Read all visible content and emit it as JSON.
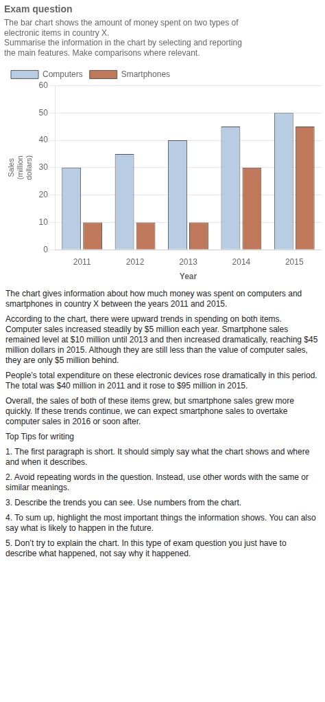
{
  "chart_data": {
    "type": "bar",
    "title": "Exam question",
    "subtitle": [
      "The bar chart shows the amount of money spent on two types of",
      "electronic items in country X.",
      "Summarise the information in the chart by selecting and reporting",
      "the main features. Make comparisons where relevant."
    ],
    "categories": [
      "2011",
      "2012",
      "2013",
      "2014",
      "2015"
    ],
    "series": [
      {
        "name": "Computers",
        "color": "#B8CCE4",
        "values": [
          30,
          35,
          40,
          45,
          50
        ]
      },
      {
        "name": "Smartphones",
        "color": "#C0785A",
        "values": [
          10,
          10,
          10,
          30,
          45
        ]
      }
    ],
    "xlabel": "Year",
    "ylabel": "Sales\n(million\ndollars)",
    "ylim": [
      0,
      60
    ],
    "yticks": [
      0,
      10,
      20,
      30,
      40,
      50,
      60
    ],
    "grid": true,
    "legend": "upper left",
    "annotations": [
      "The chart gives information about how much money was spent on computers and smartphones in country X between the years 2011 and 2015.",
      "According to the chart, there were upward trends in spending on both items. Computer sales increased steadily by $5 million each year. Smartphone sales remained level at $10 million until 2013 and then increased dramatically, reaching $45 million dollars in 2015. Although they are still less than the value of computer sales, they are only $5 million behind.",
      "People’s total expenditure on these electronic devices rose dramatically in this period. The total was $40 million in 2011 and it rose to $95 million in 2015.",
      "Overall, the sales of both of these items grew, but smartphone sales grew more quickly. If these trends continue, we can expect smartphone sales to overtake computer sales in 2016 or soon after.",
      "Top Tips for writing",
      "1. The first paragraph is short. It should simply say what the chart shows and where and when it describes.",
      "2. Avoid repeating words in the question. Instead, use other words with the same or similar meanings.",
      "3. Describe the trends you can see. Use numbers from the chart.",
      "4. To sum up, highlight the most important things the information shows. You can also say what is likely to happen in the future.",
      "5. Don’t try to explain the chart. In this type of exam question you just have to describe what happened, not say why it happened."
    ]
  }
}
